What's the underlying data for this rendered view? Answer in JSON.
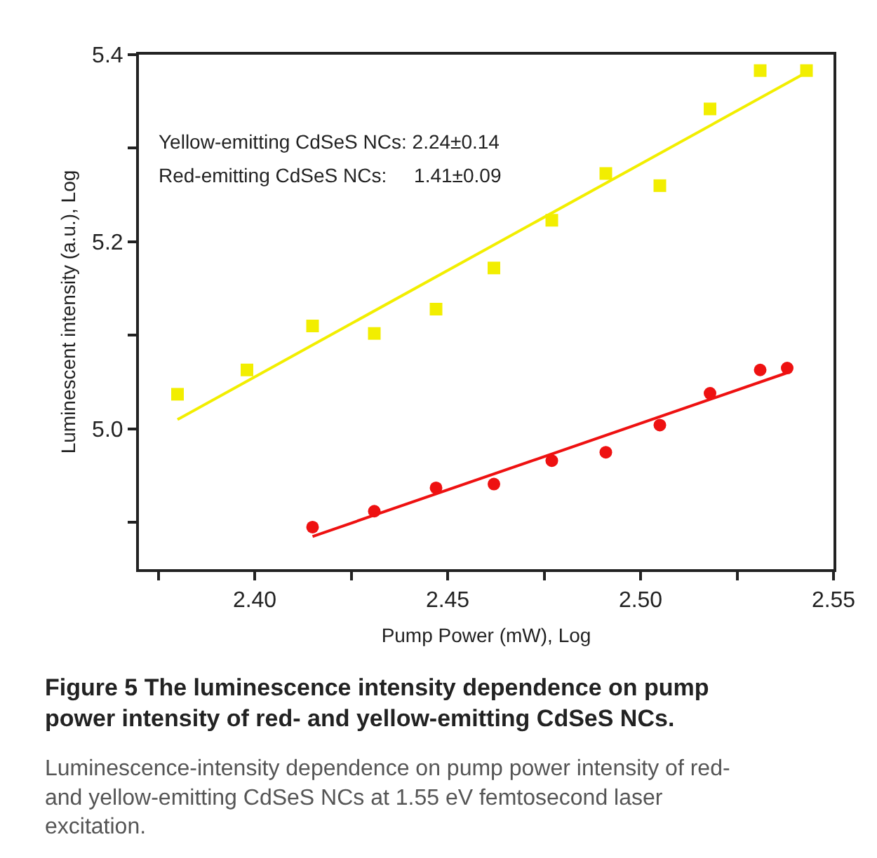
{
  "chart_data": {
    "type": "scatter",
    "title": "Figure 5 The luminescence intensity dependence on pump power intensity of red- and yellow-emitting CdSeS NCs.",
    "subtitle": "Luminescence-intensity dependence on pump power intensity of red- and yellow-emitting CdSeS NCs at 1.55 eV femtosecond laser excitation.",
    "xlabel": "Pump Power (mW), Log",
    "ylabel": "Luminescent intensity (a.u.), Log",
    "annotations": [
      "Yellow-emitting CdSeS NCs: 2.24±0.14",
      "Red-emitting CdSeS NCs:     1.41±0.09"
    ],
    "xlim": [
      2.37,
      2.55
    ],
    "xticks": [
      {
        "value": 2.375,
        "label": null
      },
      {
        "value": 2.4,
        "label": "2.40"
      },
      {
        "value": 2.425,
        "label": null
      },
      2.45,
      {
        "value": 2.475,
        "label": null
      },
      {
        "value": 2.5,
        "label": "2.50"
      },
      {
        "value": 2.525,
        "label": null
      },
      2.55
    ],
    "ylim": [
      4.85,
      5.4
    ],
    "yticks": [
      {
        "value": 4.9,
        "label": null
      },
      {
        "value": 5.0,
        "label": "5.0"
      },
      {
        "value": 5.1,
        "label": null
      },
      5.2,
      {
        "value": 5.3,
        "label": null
      },
      5.4
    ],
    "series": [
      {
        "marker": "square",
        "color": "#f2ee00",
        "x": [
          2.38,
          2.398,
          2.415,
          2.431,
          2.447,
          2.462,
          2.477,
          2.491,
          2.505,
          2.518,
          2.531,
          2.543
        ],
        "values": [
          5.037,
          5.063,
          5.11,
          5.102,
          5.128,
          5.172,
          5.223,
          5.273,
          5.26,
          5.342,
          5.383,
          5.383
        ]
      },
      {
        "marker": "circle",
        "color": "#ee1111",
        "x": [
          2.415,
          2.431,
          2.447,
          2.462,
          2.477,
          2.491,
          2.505,
          2.518,
          2.531,
          2.538
        ],
        "values": [
          4.895,
          4.912,
          4.937,
          4.941,
          4.966,
          4.975,
          5.004,
          5.038,
          5.063,
          5.065
        ]
      },
      {
        "type": "line",
        "marker": "none",
        "color": "#f2ee00",
        "x": [
          2.38,
          2.543
        ],
        "values": [
          5.01,
          5.381
        ]
      },
      {
        "type": "line",
        "marker": "none",
        "color": "#ee1111",
        "x": [
          2.415,
          2.538
        ],
        "values": [
          4.885,
          5.06
        ]
      }
    ]
  }
}
